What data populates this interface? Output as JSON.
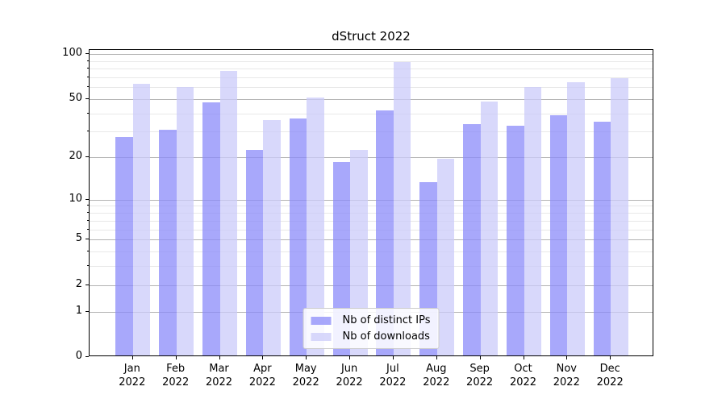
{
  "chart_data": {
    "type": "bar",
    "title": "dStruct 2022",
    "categories": [
      "Jan 2022",
      "Feb 2022",
      "Mar 2022",
      "Apr 2022",
      "May 2022",
      "Jun 2022",
      "Jul 2022",
      "Aug 2022",
      "Sep 2022",
      "Oct 2022",
      "Nov 2022",
      "Dec 2022"
    ],
    "series": [
      {
        "name": "Nb of distinct IPs",
        "color": "#8b8bf9",
        "opacity": 0.75,
        "values": [
          27,
          30,
          46,
          22,
          36,
          18,
          41,
          13,
          33,
          32,
          38,
          34
        ]
      },
      {
        "name": "Nb of downloads",
        "color": "#cbcbfa",
        "opacity": 0.75,
        "values": [
          62,
          59,
          75,
          35,
          50,
          22,
          86,
          19,
          47,
          59,
          63,
          67
        ]
      }
    ],
    "xlabel": "",
    "ylabel": "",
    "yscale": "log1p",
    "ylim": [
      0,
      106.5
    ],
    "y_major_ticks": [
      100,
      50,
      20,
      10,
      5,
      2,
      1,
      0
    ],
    "y_minor_ticks": [
      3,
      4,
      6,
      7,
      8,
      9,
      30,
      40,
      60,
      70,
      80,
      90
    ],
    "grid": "on",
    "legend_position": "lower center"
  },
  "colors": {
    "major_grid": "#b3b3b3",
    "minor_grid": "#e8e8e8",
    "axis": "#000000",
    "background": "#ffffff"
  }
}
